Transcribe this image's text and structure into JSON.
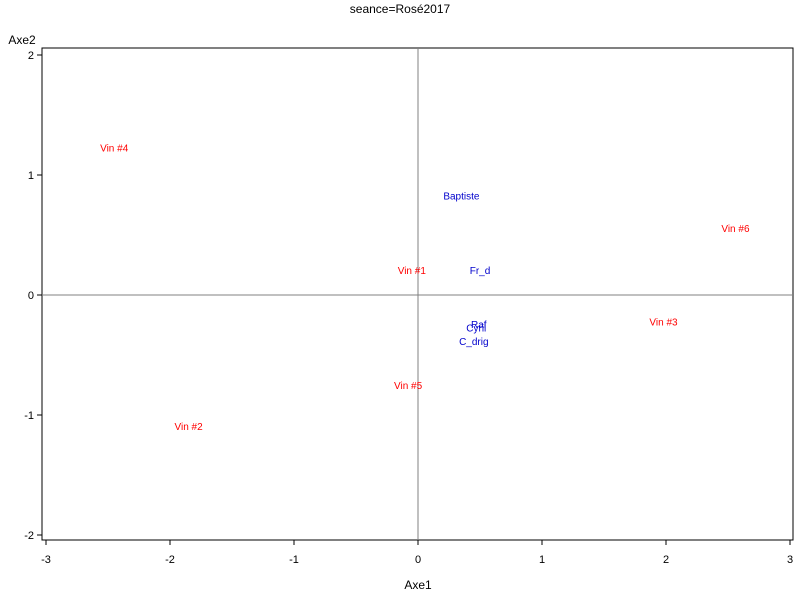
{
  "chart_data": {
    "type": "scatter",
    "title": "seance=Rosé2017",
    "xlabel": "Axe1",
    "ylabel": "Axe2",
    "xlim": [
      -3,
      3
    ],
    "ylim": [
      -2,
      2
    ],
    "xticks": [
      "-3",
      "-2",
      "-1",
      "0",
      "1",
      "2",
      "3"
    ],
    "yticks": [
      "-2",
      "-1",
      "0",
      "1",
      "2"
    ],
    "reference_lines": {
      "x": 0,
      "y": 0
    },
    "series": [
      {
        "color": "#ff0000",
        "points": [
          {
            "label": "Vin #1",
            "x": -0.05,
            "y": 0.2
          },
          {
            "label": "Vin #2",
            "x": -1.85,
            "y": -1.1
          },
          {
            "label": "Vin #3",
            "x": 1.98,
            "y": -0.23
          },
          {
            "label": "Vin #4",
            "x": -2.45,
            "y": 1.22
          },
          {
            "label": "Vin #5",
            "x": -0.08,
            "y": -0.76
          },
          {
            "label": "Vin #6",
            "x": 2.56,
            "y": 0.55
          }
        ]
      },
      {
        "color": "#0000cc",
        "points": [
          {
            "label": "Baptiste",
            "x": 0.35,
            "y": 0.82
          },
          {
            "label": "Fr_d",
            "x": 0.5,
            "y": 0.2
          },
          {
            "label": "Raf",
            "x": 0.49,
            "y": -0.25
          },
          {
            "label": "Cyril",
            "x": 0.47,
            "y": -0.28
          },
          {
            "label": "C_drig",
            "x": 0.45,
            "y": -0.39
          }
        ]
      }
    ]
  }
}
